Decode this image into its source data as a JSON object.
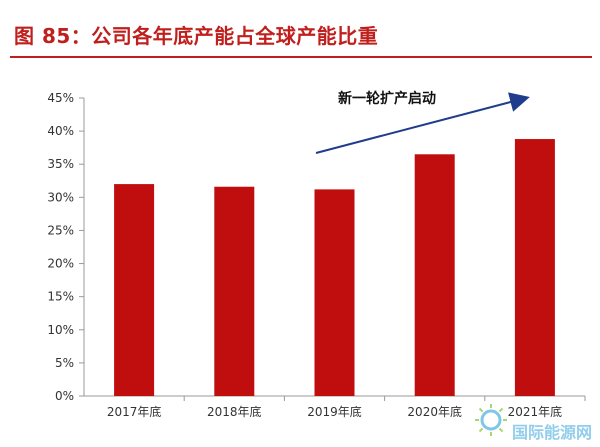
{
  "title": "图 85：公司各年底产能占全球产能比重",
  "watermark": "国际能源网",
  "colors": {
    "bar": "#c00d0d",
    "title": "#c0201d",
    "arrow": "#1f3d8c"
  },
  "chart_data": {
    "type": "bar",
    "categories": [
      "2017年底",
      "2018年底",
      "2019年底",
      "2020年底",
      "2021年底"
    ],
    "values": [
      32.0,
      31.6,
      31.2,
      36.5,
      38.8
    ],
    "ylim": [
      0,
      45
    ],
    "yticks": [
      "0%",
      "5%",
      "10%",
      "15%",
      "20%",
      "25%",
      "30%",
      "35%",
      "40%",
      "45%"
    ],
    "annotation": "新一轮扩产启动",
    "grid": false,
    "legend": "none"
  }
}
